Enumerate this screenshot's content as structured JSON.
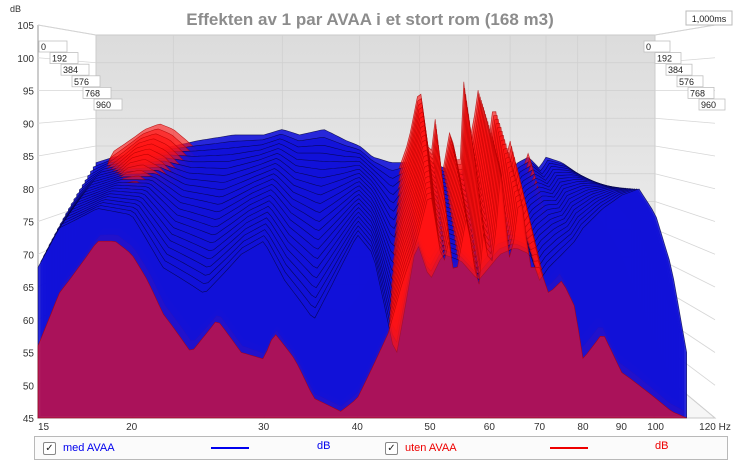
{
  "chart_data": {
    "type": "waterfall",
    "title": "Effekten av 1 par AVAA i et stort rom (168 m3)",
    "ylabel": "dB",
    "xlabel": "Hz",
    "y_ticks": [
      45,
      50,
      55,
      60,
      65,
      70,
      75,
      80,
      85,
      90,
      95,
      100,
      105
    ],
    "ylim": [
      45,
      105
    ],
    "x_ticks": [
      15,
      20,
      30,
      40,
      50,
      60,
      70,
      80,
      90,
      100,
      120
    ],
    "x_tick_labels": [
      "15",
      "20",
      "30",
      "40",
      "50",
      "60",
      "70",
      "80",
      "90",
      "100",
      "120 Hz"
    ],
    "xlim": [
      15,
      120
    ],
    "time_ticks_ms": [
      "0",
      "192",
      "384",
      "576",
      "768",
      "960"
    ],
    "time_max_label": "1,000ms",
    "series": [
      {
        "name": "med AVAA",
        "unit": "dB",
        "color": "#1212d8",
        "freq": [
          15,
          16,
          18,
          20,
          22,
          25,
          28,
          30,
          32,
          35,
          38,
          40,
          42,
          45,
          48,
          50,
          52,
          55,
          58,
          60,
          62,
          65,
          68,
          70,
          72,
          75,
          78,
          80,
          85,
          90,
          95,
          100,
          105,
          110
        ],
        "front_level_db": [
          68,
          74,
          77,
          76,
          68,
          64,
          70,
          72,
          66,
          60,
          68,
          73,
          70,
          54,
          72,
          66,
          70,
          69,
          66,
          68,
          70,
          71,
          70,
          66,
          68,
          70,
          72,
          74,
          77,
          79,
          80,
          76,
          68,
          55
        ],
        "back_level_db": [
          82,
          83,
          84,
          85,
          86,
          87,
          87,
          88,
          87,
          88,
          86,
          85,
          83,
          82,
          82,
          82,
          82,
          81,
          80,
          82,
          83,
          82,
          81,
          80,
          82,
          83,
          81,
          83,
          82,
          80,
          78,
          76,
          74,
          72
        ]
      },
      {
        "name": "uten AVAA",
        "unit": "dB",
        "color": "#ff1414",
        "freq": [
          15,
          16,
          17,
          18,
          19,
          20,
          21,
          22,
          23,
          24,
          26,
          28,
          30,
          31,
          32,
          33,
          35,
          38,
          40,
          44,
          46,
          48,
          50,
          52,
          53,
          54,
          56,
          58,
          59,
          60,
          61,
          62,
          64,
          66,
          68,
          70,
          72,
          75,
          78,
          80,
          85,
          90,
          95,
          100,
          105,
          110
        ],
        "front_level_db": [
          56,
          64,
          68,
          72,
          72,
          70,
          66,
          61,
          58,
          55,
          60,
          55,
          54,
          58,
          56,
          54,
          48,
          46,
          48,
          58,
          66,
          72,
          80,
          68,
          72,
          66,
          76,
          64,
          74,
          68,
          70,
          84,
          68,
          80,
          68,
          68,
          64,
          66,
          62,
          54,
          58,
          52,
          50,
          48,
          46,
          45
        ],
        "back_level_db": [
          78,
          84,
          86,
          88,
          89,
          88,
          86,
          84,
          82,
          80,
          74,
          70,
          65,
          66,
          62,
          60,
          56,
          55,
          58,
          66,
          80,
          86,
          96,
          82,
          90,
          78,
          88,
          80,
          98,
          86,
          88,
          96,
          82,
          94,
          80,
          86,
          78,
          84,
          76,
          80,
          80,
          76,
          74,
          70,
          66,
          60
        ]
      }
    ],
    "legend_position": "bottom"
  },
  "legend": [
    {
      "label": "med AVAA",
      "unit": "dB",
      "checked": "✓",
      "color": "#0000ee"
    },
    {
      "label": "uten AVAA",
      "unit": "dB",
      "checked": "✓",
      "color": "#ee0000"
    }
  ]
}
